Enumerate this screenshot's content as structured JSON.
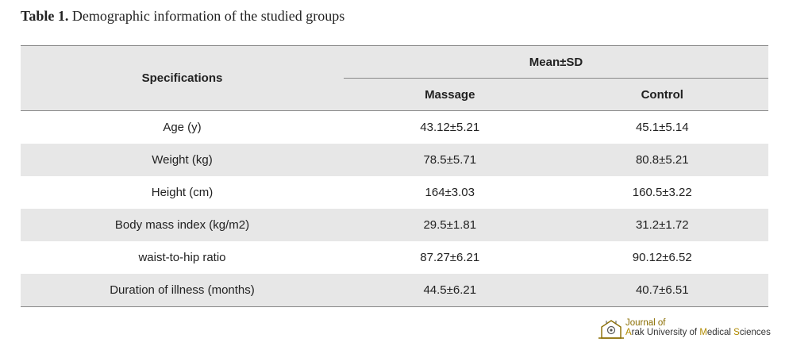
{
  "caption": {
    "label": "Table 1.",
    "text": "Demographic information of the studied groups"
  },
  "table": {
    "header": {
      "specifications": "Specifications",
      "group_header": "Mean±SD",
      "col1": "Massage",
      "col2": "Control"
    },
    "rows": [
      {
        "label": "Age (y)",
        "massage": "43.12±5.21",
        "control": "45.1±5.14"
      },
      {
        "label": "Weight (kg)",
        "massage": "78.5±5.71",
        "control": "80.8±5.21"
      },
      {
        "label": "Height (cm)",
        "massage": "164±3.03",
        "control": "160.5±3.22"
      },
      {
        "label": "Body mass index (kg/m2)",
        "massage": "29.5±1.81",
        "control": "31.2±1.72"
      },
      {
        "label": "waist-to-hip ratio",
        "massage": "87.27±6.21",
        "control": "90.12±6.52"
      },
      {
        "label": "Duration of illness (months)",
        "massage": "44.5±6.21",
        "control": "40.7±6.51"
      }
    ]
  },
  "logo": {
    "line1": "Journal of",
    "line2_a": "A",
    "line2_b": "rak University of ",
    "line2_c": "M",
    "line2_d": "edical ",
    "line2_e": "S",
    "line2_f": "ciences"
  }
}
